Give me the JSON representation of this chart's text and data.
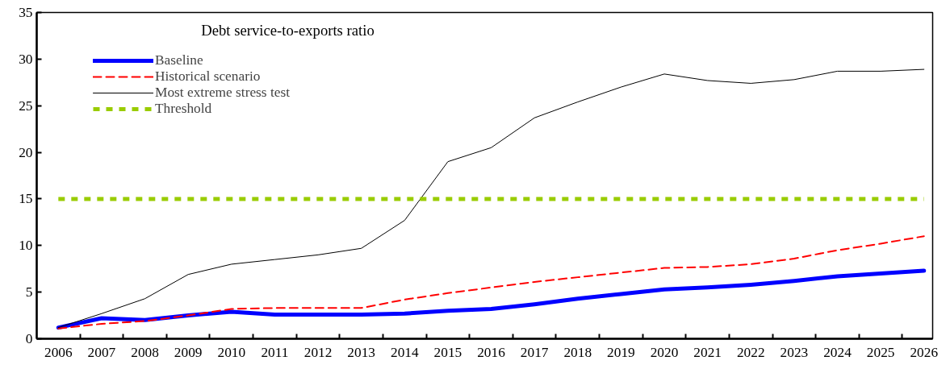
{
  "chart_data": {
    "type": "line",
    "title": "Debt service-to-exports ratio",
    "categories": [
      "2006",
      "2007",
      "2008",
      "2009",
      "2010",
      "2011",
      "2012",
      "2013",
      "2014",
      "2015",
      "2016",
      "2017",
      "2018",
      "2019",
      "2020",
      "2021",
      "2022",
      "2023",
      "2024",
      "2025",
      "2026"
    ],
    "series": [
      {
        "name": "Baseline",
        "color": "#0000ff",
        "line_style": "solid",
        "values": [
          1.2,
          2.2,
          2.0,
          2.5,
          2.9,
          2.6,
          2.6,
          2.6,
          2.7,
          3.0,
          3.2,
          3.7,
          4.3,
          4.8,
          5.3,
          5.5,
          5.8,
          6.2,
          6.7,
          7.0,
          7.3
        ]
      },
      {
        "name": "Historical scenario",
        "color": "#ff0000",
        "line_style": "dashed",
        "values": [
          1.1,
          1.6,
          1.9,
          2.5,
          3.2,
          3.3,
          3.3,
          3.3,
          4.2,
          4.9,
          5.5,
          6.1,
          6.6,
          7.1,
          7.6,
          7.7,
          8.0,
          8.6,
          9.5,
          10.2,
          11.0
        ]
      },
      {
        "name": "Most extreme stress test",
        "color": "#000000",
        "line_style": "solid",
        "values": [
          1.2,
          2.7,
          4.3,
          6.9,
          8.0,
          8.5,
          9.0,
          9.7,
          12.7,
          19.0,
          20.5,
          23.7,
          25.4,
          27.0,
          28.4,
          27.7,
          27.4,
          27.8,
          28.7,
          28.7,
          28.9
        ]
      }
    ],
    "ref_lines": [
      {
        "axis": "y",
        "value": 15,
        "label": "Threshold",
        "color": "#99cc00",
        "line_style": "dotted"
      }
    ],
    "ylim": [
      0,
      35
    ],
    "yticks": [
      0,
      5,
      10,
      15,
      20,
      25,
      30,
      35
    ],
    "grid": false,
    "legend": "top left",
    "marker": "none"
  }
}
